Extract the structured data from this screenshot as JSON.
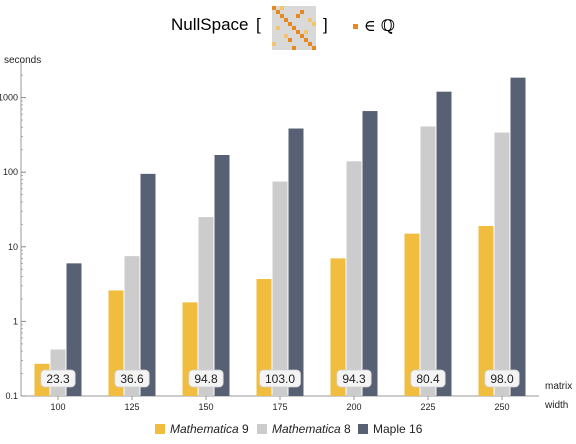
{
  "title": {
    "text": "NullSpace",
    "open_bracket": "[",
    "close_bracket": "]",
    "element_of": "∈ ℚ"
  },
  "colors": {
    "mathematica9": "#f0bd3e",
    "mathematica8": "#cccccc",
    "maple16": "#586174",
    "matrix_cell": "#e8891f",
    "matrix_cell_light": "#f2c56a",
    "matrix_bg": "#d9d9d9"
  },
  "legend": {
    "items": [
      {
        "italic": "Mathematica",
        "rest": " 9"
      },
      {
        "italic": "Mathematica",
        "rest": " 8"
      },
      {
        "italic": "",
        "rest": "Maple 16"
      }
    ]
  },
  "chart_data": {
    "type": "bar",
    "ylabel": "seconds",
    "xlabel": "matrix width",
    "xlabel_lines": [
      "matrix",
      "width"
    ],
    "yscale": "log",
    "ylim": [
      0.1,
      3000
    ],
    "yticks": [
      0.1,
      1,
      10,
      100,
      1000
    ],
    "ytick_labels": [
      "0.1",
      "1",
      "10",
      "100",
      "1000"
    ],
    "categories": [
      "100",
      "125",
      "150",
      "175",
      "200",
      "225",
      "250"
    ],
    "series": [
      {
        "name": "Mathematica 9",
        "values": [
          0.27,
          2.6,
          1.8,
          3.7,
          7.0,
          15,
          19
        ]
      },
      {
        "name": "Mathematica 8",
        "values": [
          0.42,
          7.5,
          25,
          75,
          140,
          410,
          340
        ]
      },
      {
        "name": "Maple 16",
        "values": [
          6.0,
          95,
          170,
          385,
          660,
          1200,
          1850
        ]
      }
    ],
    "bar_labels": [
      "23.3",
      "36.6",
      "94.8",
      "103.0",
      "94.3",
      "80.4",
      "98.0"
    ],
    "grid": false,
    "legend_position": "bottom"
  }
}
